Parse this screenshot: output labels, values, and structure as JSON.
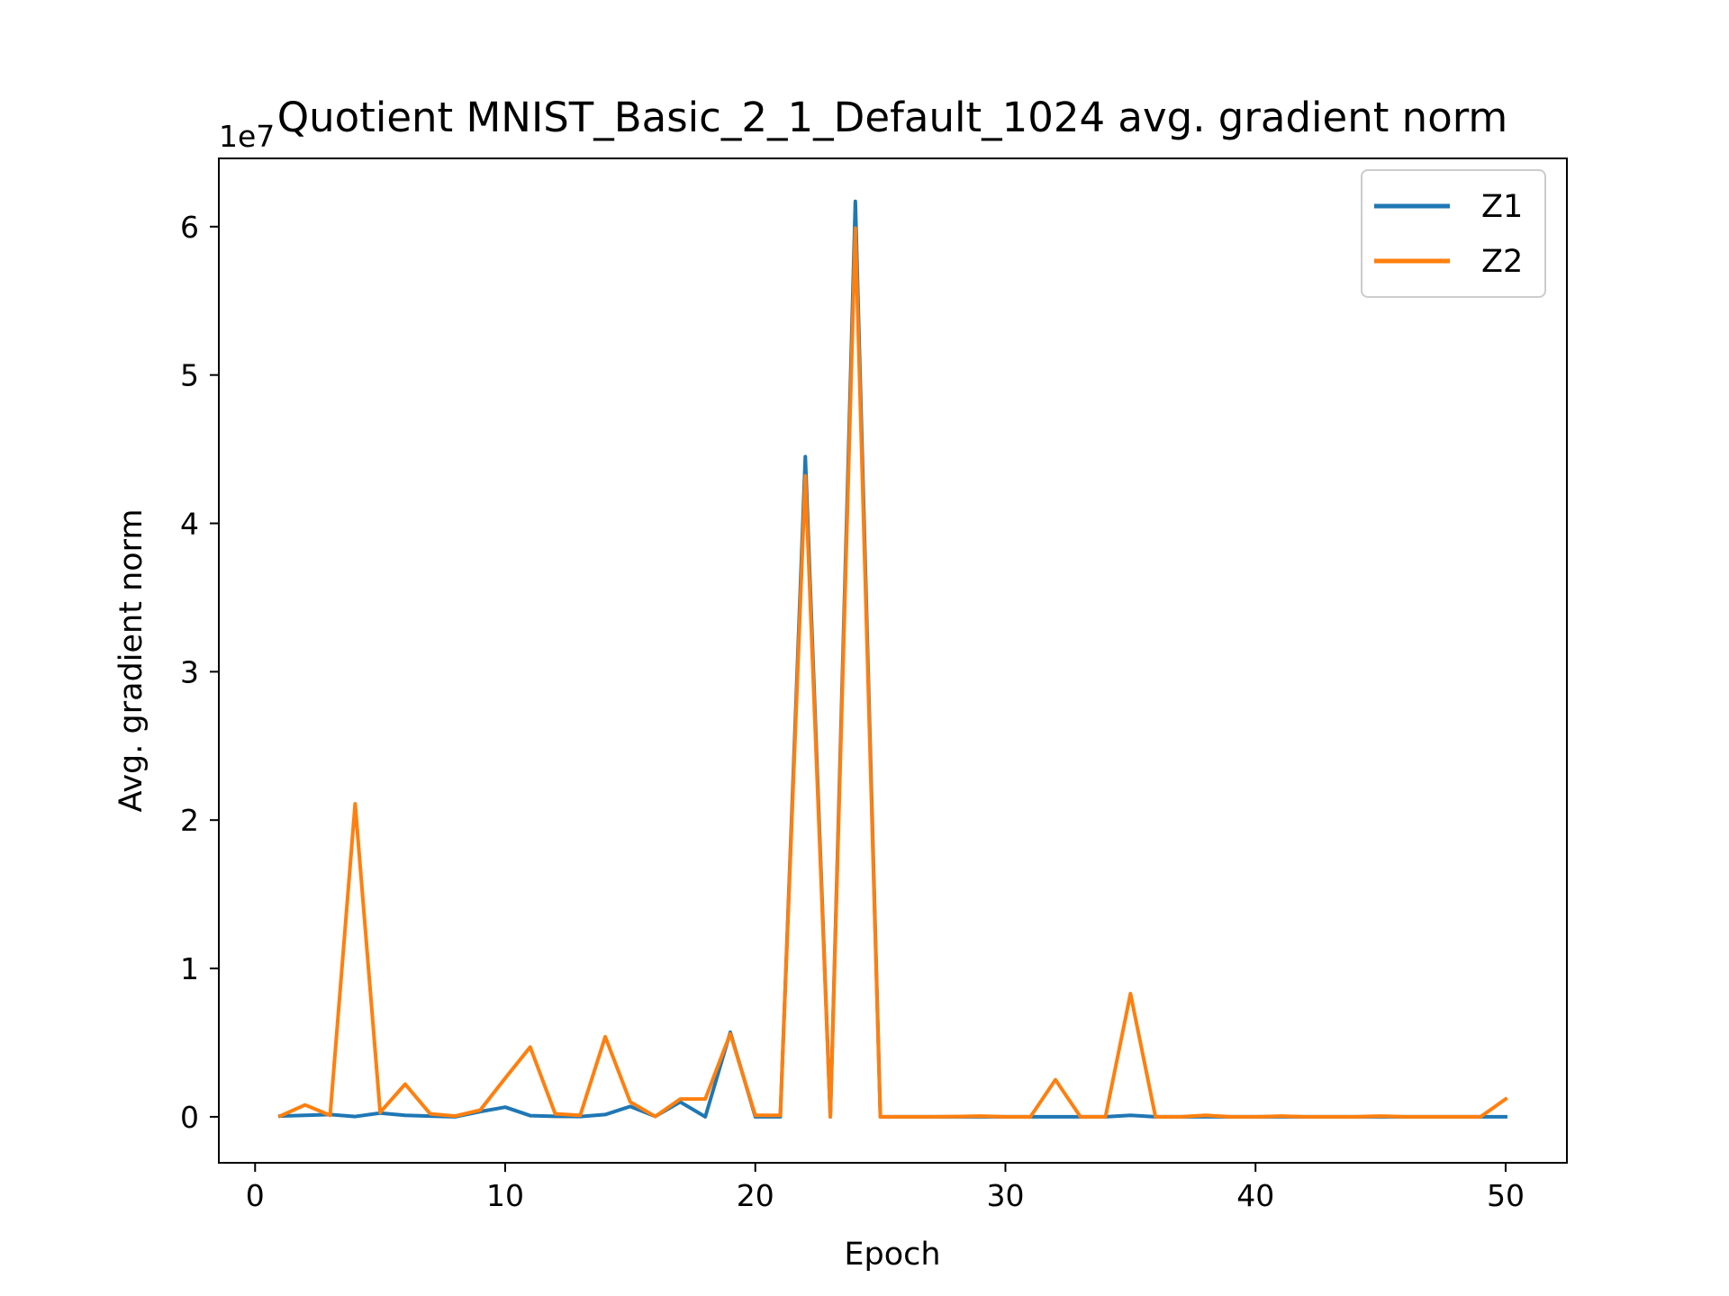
{
  "chart_data": {
    "type": "line",
    "title": "Quotient MNIST_Basic_2_1_Default_1024 avg. gradient norm",
    "xlabel": "Epoch",
    "ylabel": "Avg. gradient norm",
    "y_offset_text": "1e7",
    "xlim": [
      -1.45,
      52.45
    ],
    "ylim": [
      -3100000,
      64600000
    ],
    "xticks": [
      0,
      10,
      20,
      30,
      40,
      50
    ],
    "yticks": [
      0,
      10000000,
      20000000,
      30000000,
      40000000,
      50000000,
      60000000
    ],
    "xtick_labels": [
      "0",
      "10",
      "20",
      "30",
      "40",
      "50"
    ],
    "ytick_labels": [
      "0",
      "1",
      "2",
      "3",
      "4",
      "5",
      "6"
    ],
    "grid": false,
    "legend_position": "upper right",
    "x": [
      1,
      2,
      3,
      4,
      5,
      6,
      7,
      8,
      9,
      10,
      11,
      12,
      13,
      14,
      15,
      16,
      17,
      18,
      19,
      20,
      21,
      22,
      23,
      24,
      25,
      26,
      27,
      28,
      29,
      30,
      31,
      32,
      33,
      34,
      35,
      36,
      37,
      38,
      39,
      40,
      41,
      42,
      43,
      44,
      45,
      46,
      47,
      48,
      49,
      50
    ],
    "series": [
      {
        "name": "Z1",
        "color": "#1f77b4",
        "values": [
          50000,
          100000,
          150000,
          20000,
          250000,
          100000,
          50000,
          0,
          350000,
          650000,
          80000,
          30000,
          20000,
          150000,
          700000,
          30000,
          1000000,
          0,
          5700000,
          0,
          0,
          44500000,
          0,
          61700000,
          0,
          0,
          0,
          0,
          0,
          0,
          0,
          0,
          0,
          0,
          100000,
          0,
          0,
          0,
          0,
          0,
          0,
          0,
          0,
          0,
          0,
          0,
          0,
          0,
          0,
          0
        ]
      },
      {
        "name": "Z2",
        "color": "#ff7f0e",
        "values": [
          50000,
          800000,
          100000,
          21100000,
          300000,
          2200000,
          200000,
          50000,
          450000,
          2600000,
          4700000,
          200000,
          100000,
          5400000,
          1000000,
          20000,
          1200000,
          1200000,
          5600000,
          100000,
          100000,
          43200000,
          0,
          59900000,
          0,
          0,
          0,
          20000,
          50000,
          0,
          0,
          2500000,
          0,
          0,
          8300000,
          0,
          0,
          100000,
          0,
          0,
          50000,
          0,
          0,
          0,
          50000,
          0,
          0,
          0,
          0,
          1200000
        ]
      }
    ]
  },
  "colors": {
    "z1": "#1f77b4",
    "z2": "#ff7f0e",
    "axes": "#000000",
    "legend_border": "#cccccc"
  }
}
